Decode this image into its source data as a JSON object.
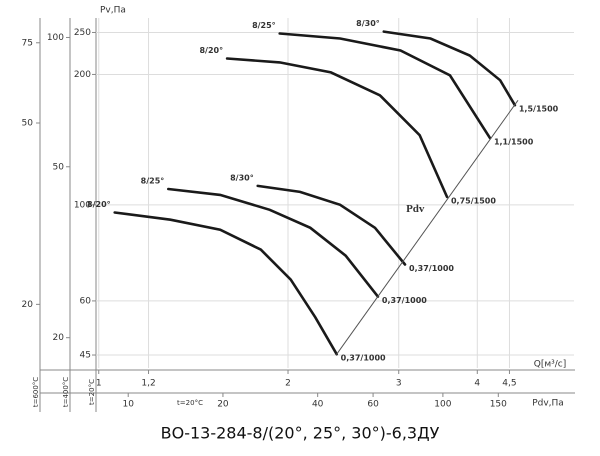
{
  "chart_data": {
    "type": "line",
    "title": "ВО-13-284-8/(20°, 25°, 30°)-6,3ДУ",
    "x_label": "Q[м³/с]",
    "y_label": "Pv,Па",
    "y_note": "t=20°C",
    "xscale": "log",
    "yscale": "log",
    "xlim": [
      0.99,
      5.7
    ],
    "ylim": [
      42,
      270
    ],
    "xticks": [
      {
        "value": 1,
        "label": "1"
      },
      {
        "value": 1.2,
        "label": "1,2"
      },
      2,
      3,
      4,
      {
        "value": 4.5,
        "label": "4,5"
      }
    ],
    "yticks": [
      250,
      200,
      100,
      60,
      45
    ],
    "grid": true,
    "y2_label": "t=400°C",
    "y2lim": [
      17,
      111
    ],
    "y2ticks": [
      100,
      50,
      20
    ],
    "y3_label": "t=600°C",
    "y3lim": [
      14.5,
      85
    ],
    "y3ticks": [
      75,
      50,
      20
    ],
    "x2_label": "Pdv,Па",
    "x2_note": "t=20°C",
    "x2lim": [
      7.9,
      261
    ],
    "x2ticks": [
      10,
      20,
      40,
      60,
      100,
      150
    ],
    "series": [
      {
        "name": "8/20°",
        "end_label": "0,37/1000",
        "color": "#1a1a1a",
        "x": [
          1.06,
          1.3,
          1.56,
          1.81,
          2.02,
          2.21,
          2.39
        ],
        "values": [
          96,
          92.4,
          87.6,
          78.8,
          67.2,
          55,
          45.2
        ]
      },
      {
        "name": "8/25°",
        "end_label": "0,37/1000",
        "color": "#1a1a1a",
        "x": [
          1.29,
          1.56,
          1.87,
          2.17,
          2.47,
          2.78
        ],
        "values": [
          108.8,
          105.4,
          97.4,
          88.5,
          76.3,
          61.4
        ]
      },
      {
        "name": "8/30°",
        "end_label": "0,37/1000",
        "color": "#1a1a1a",
        "x": [
          1.79,
          2.09,
          2.42,
          2.75,
          3.07
        ],
        "values": [
          110.6,
          107.1,
          100,
          88.5,
          72.8
        ]
      },
      {
        "name": "8/20°",
        "end_label": "0,75/1500",
        "color": "#1a1a1a",
        "x": [
          1.6,
          1.94,
          2.34,
          2.8,
          3.24,
          3.58
        ],
        "values": [
          217.7,
          213.2,
          202.2,
          179,
          144.8,
          104.3
        ]
      },
      {
        "name": "8/25°",
        "end_label": "1,1/1500",
        "color": "#1a1a1a",
        "x": [
          1.94,
          2.42,
          3.02,
          3.62,
          4.19
        ],
        "values": [
          248.6,
          242.1,
          227.1,
          199,
          142.6
        ]
      },
      {
        "name": "8/30°",
        "end_label": "1,5/1500",
        "color": "#1a1a1a",
        "x": [
          2.84,
          3.37,
          3.89,
          4.35,
          4.59
        ],
        "values": [
          251.2,
          242.1,
          221.2,
          193.9,
          169.8
        ]
      },
      {
        "name": "Pdv",
        "color": "#555555",
        "x": [
          2.39,
          4.64
        ],
        "values": [
          45.2,
          174
        ]
      }
    ]
  }
}
